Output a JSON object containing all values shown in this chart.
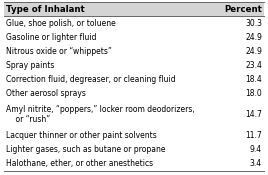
{
  "col1_header": "Type of Inhalant",
  "col2_header": "Percent",
  "rows": [
    [
      "Glue, shoe polish, or toluene",
      "30.3"
    ],
    [
      "Gasoline or lighter fluid",
      "24.9"
    ],
    [
      "Nitrous oxide or “whippets”",
      "24.9"
    ],
    [
      "Spray paints",
      "23.4"
    ],
    [
      "Correction fluid, degreaser, or cleaning fluid",
      "18.4"
    ],
    [
      "Other aerosol sprays",
      "18.0"
    ],
    [
      "Amyl nitrite, “poppers,” locker room deodorizers,\n    or “rush”",
      "14.7"
    ],
    [
      "Lacquer thinner or other paint solvents",
      "11.7"
    ],
    [
      "Lighter gases, such as butane or propane",
      "9.4"
    ],
    [
      "Halothane, ether, or other anesthetics",
      "3.4"
    ]
  ],
  "background_color": "#ffffff",
  "header_bg": "#d4d4d4",
  "line_color": "#666666",
  "text_color": "#000000",
  "font_size": 5.5,
  "header_font_size": 6.2,
  "fig_width": 2.68,
  "fig_height": 1.75,
  "dpi": 100
}
